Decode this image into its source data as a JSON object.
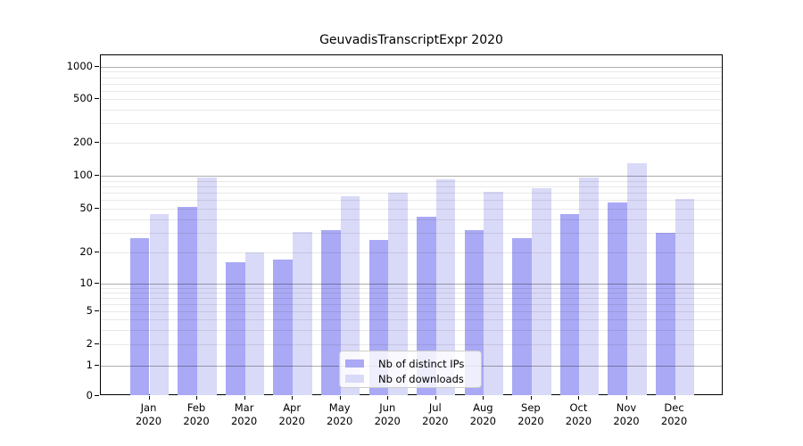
{
  "chart_data": {
    "type": "bar",
    "title": "GeuvadisTranscriptExpr 2020",
    "categories": [
      "Jan",
      "Feb",
      "Mar",
      "Apr",
      "May",
      "Jun",
      "Jul",
      "Aug",
      "Sep",
      "Oct",
      "Nov",
      "Dec"
    ],
    "x_year": "2020",
    "series": [
      {
        "name": "Nb of distinct IPs",
        "color": "#a9a9f5",
        "values": [
          27,
          52,
          16,
          17,
          32,
          26,
          42,
          32,
          27,
          45,
          57,
          30
        ]
      },
      {
        "name": "Nb of downloads",
        "color": "#d9d9f8",
        "values": [
          45,
          97,
          20,
          31,
          65,
          70,
          93,
          72,
          77,
          97,
          130,
          61
        ]
      }
    ],
    "xlabel": "",
    "ylabel": "",
    "yscale": "symlog",
    "y_ticks": [
      0,
      1,
      2,
      5,
      10,
      20,
      50,
      100,
      200,
      500,
      1000
    ],
    "ylim": [
      0,
      1300
    ],
    "grid": "both",
    "grid_major_values": [
      1,
      10,
      100,
      1000
    ],
    "legend_position": "lower-center-inside"
  }
}
